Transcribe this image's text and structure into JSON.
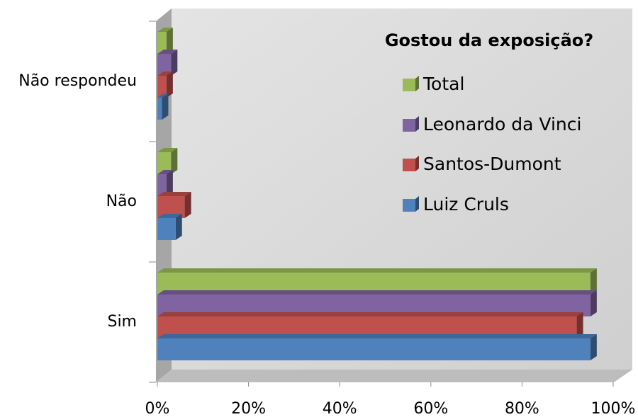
{
  "chart_data": {
    "type": "bar3d_horizontal",
    "title": "Gostou da exposição?",
    "categories": [
      "Sim",
      "Não",
      "Não respondeu"
    ],
    "series": [
      {
        "name": "Luiz Cruls",
        "color": "#4f81bd",
        "values": [
          95,
          4,
          1
        ]
      },
      {
        "name": "Santos-Dumont",
        "color": "#c0504d",
        "values": [
          92,
          6,
          2
        ]
      },
      {
        "name": "Leonardo da Vinci",
        "color": "#8064a2",
        "values": [
          95,
          2,
          3
        ]
      },
      {
        "name": "Total",
        "color": "#9bbb59",
        "values": [
          95,
          3,
          2
        ]
      }
    ],
    "xlim": [
      0,
      100
    ],
    "xticks": [
      {
        "value": 0,
        "label": "0%"
      },
      {
        "value": 20,
        "label": "20%"
      },
      {
        "value": 40,
        "label": "40%"
      },
      {
        "value": 60,
        "label": "60%"
      },
      {
        "value": 80,
        "label": "80%"
      },
      {
        "value": 100,
        "label": "100%"
      }
    ],
    "legend": "upper right"
  }
}
